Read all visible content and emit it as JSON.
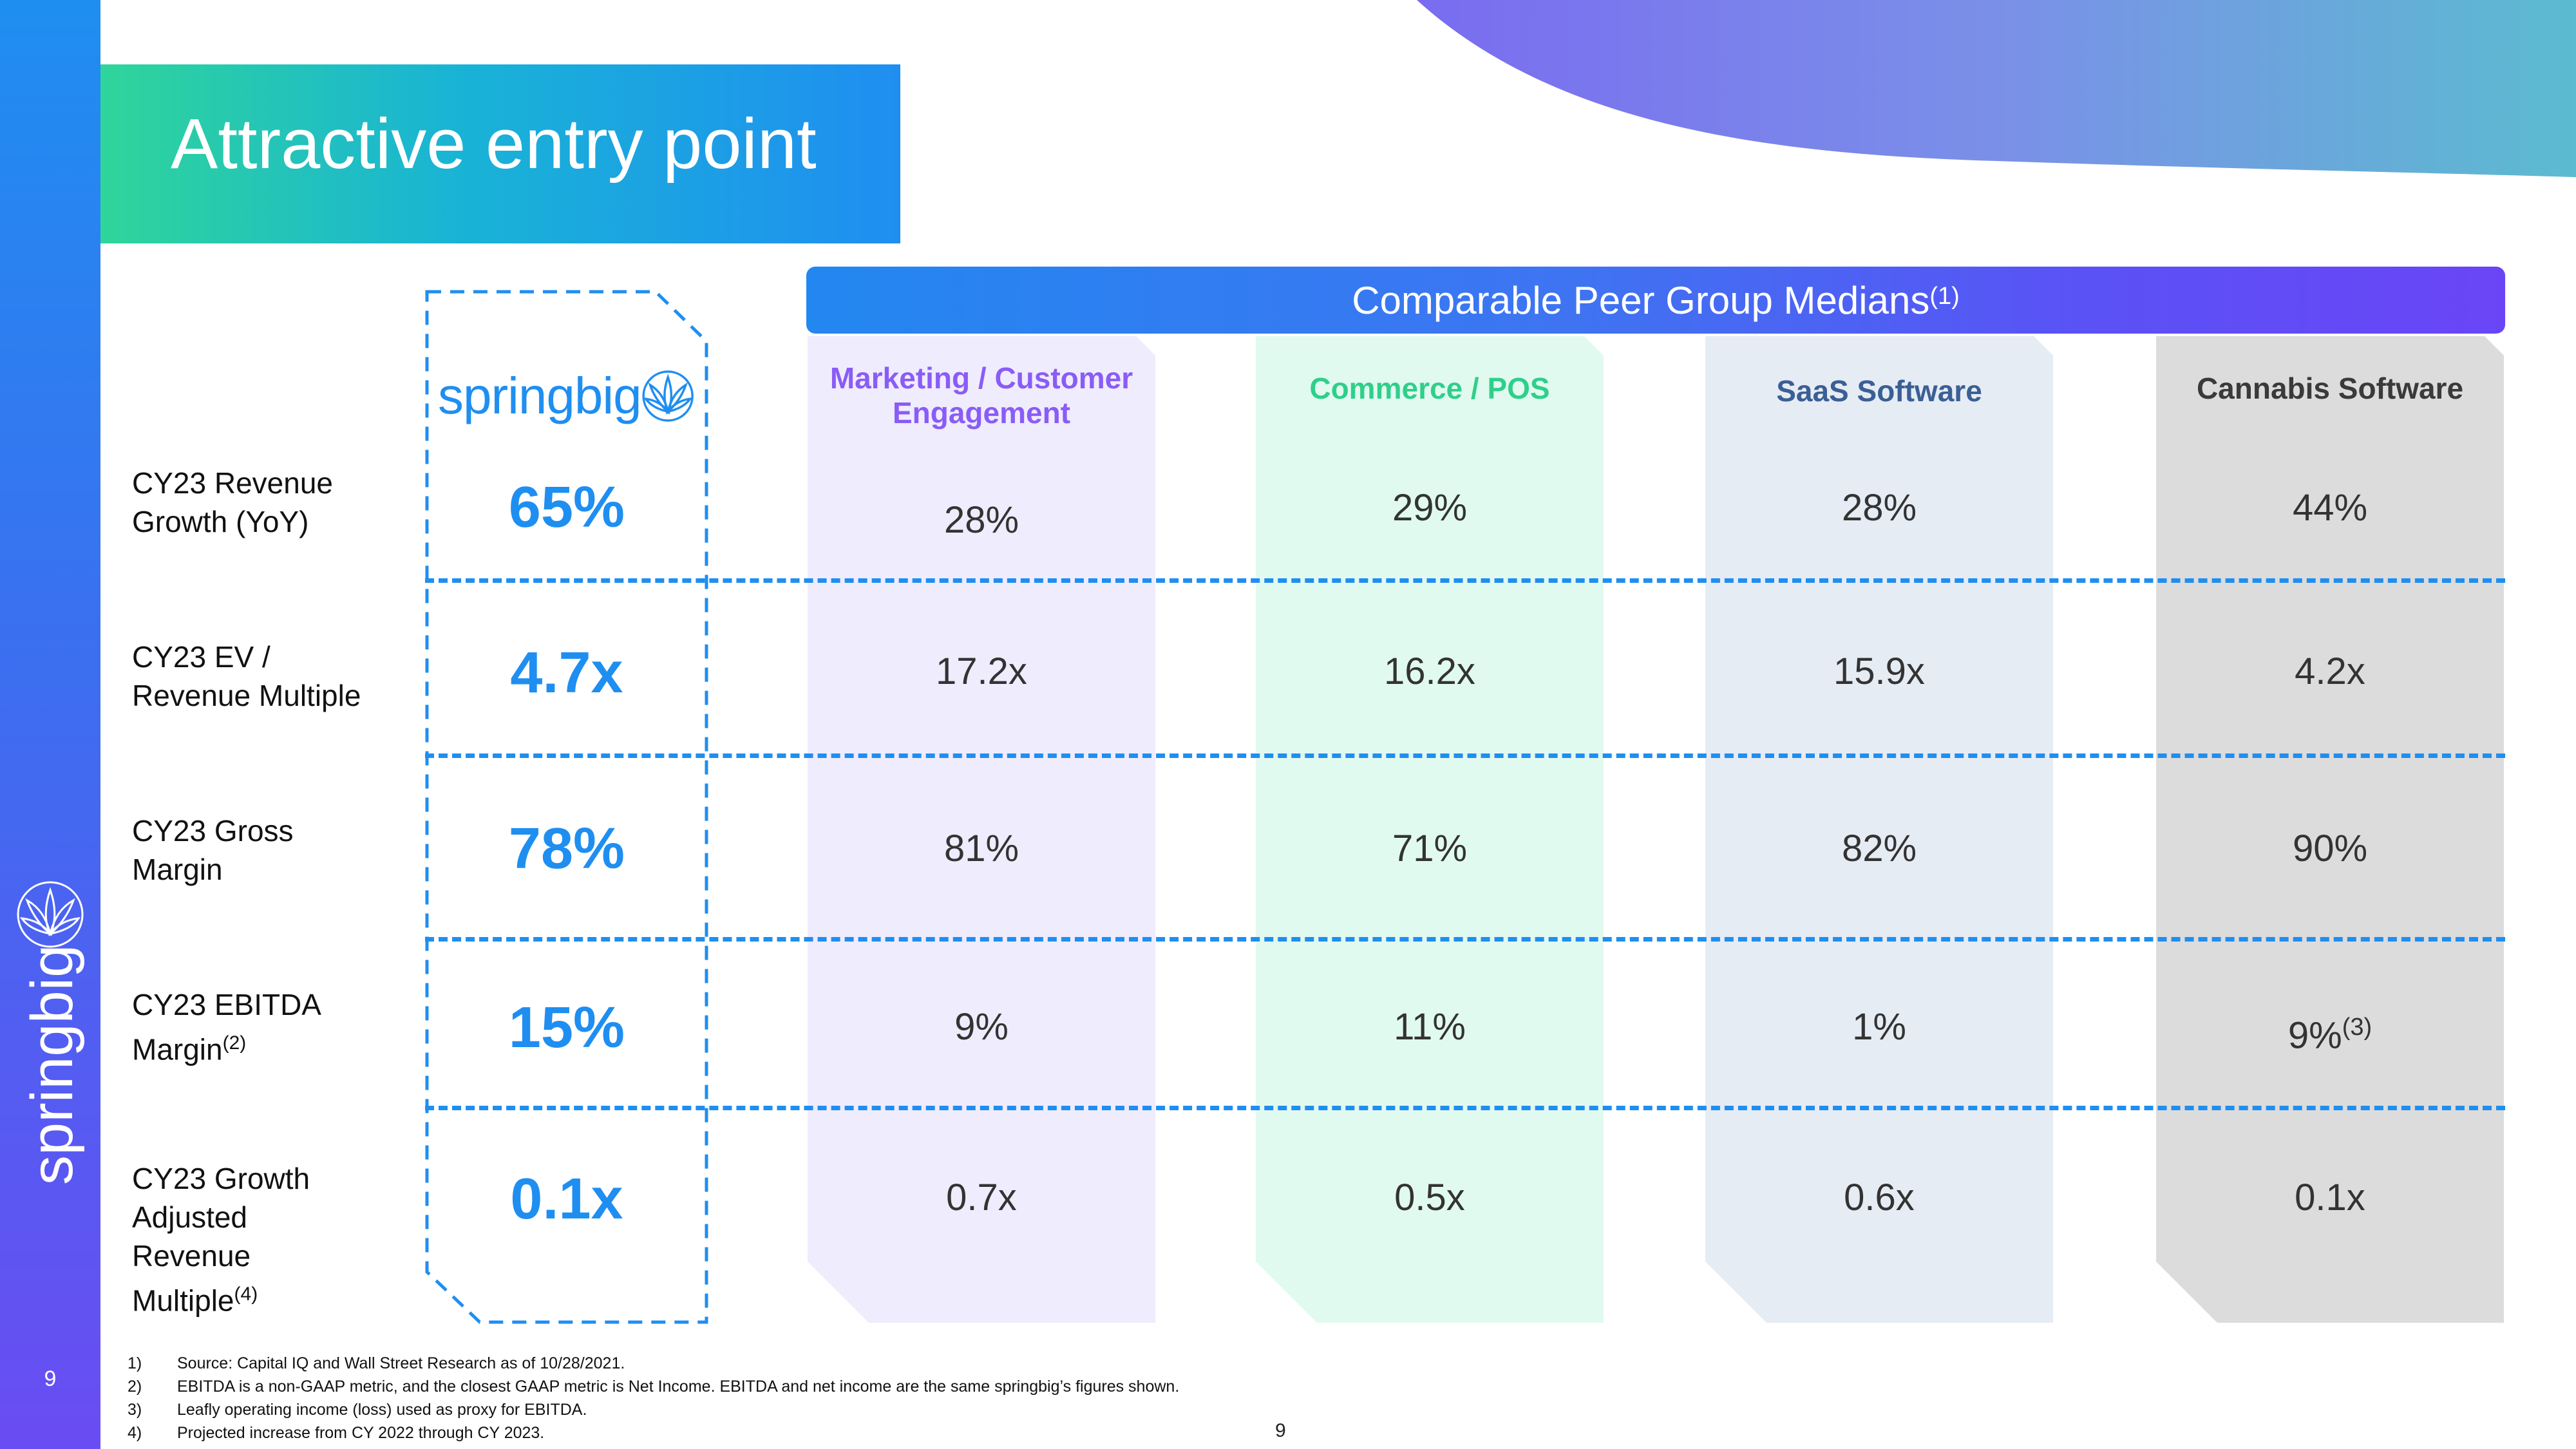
{
  "sidebar": {
    "logo_text": "springbig",
    "page_number": "9"
  },
  "title": "Attractive entry point",
  "peer_header": {
    "label": "Comparable Peer Group Medians",
    "footnote": "(1)"
  },
  "springbig_logo_text": "springbig",
  "columns": [
    {
      "name": "Marketing / Customer Engagement",
      "line1": "Marketing / Customer",
      "line2": "Engagement",
      "color": "#8a5cf6",
      "bg": "#efecfd"
    },
    {
      "name": "Commerce / POS",
      "color": "#2fcf8b",
      "bg": "#e1faf0"
    },
    {
      "name": "SaaS Software",
      "color": "#3a5f95",
      "bg": "#e6ecf4"
    },
    {
      "name": "Cannabis Software",
      "color": "#3a3a3a",
      "bg": "#dcdcdc"
    }
  ],
  "rows": [
    {
      "label_line1": "CY23 Revenue",
      "label_line2": "Growth (YoY)",
      "springbig": "65%",
      "values": [
        "28%",
        "29%",
        "28%",
        "44%"
      ]
    },
    {
      "label_line1": "CY23 EV /",
      "label_line2": "Revenue Multiple",
      "springbig": "4.7x",
      "values": [
        "17.2x",
        "16.2x",
        "15.9x",
        "4.2x"
      ]
    },
    {
      "label_line1": "CY23 Gross",
      "label_line2": "Margin",
      "springbig": "78%",
      "values": [
        "81%",
        "71%",
        "82%",
        "90%"
      ]
    },
    {
      "label_line1": "CY23 EBITDA",
      "label_line2": "Margin",
      "label_sup": "(2)",
      "springbig": "15%",
      "values": [
        "9%",
        "11%",
        "1%",
        "9%"
      ],
      "last_sup": "(3)"
    },
    {
      "label_line1": "CY23 Growth",
      "label_line2": "Adjusted",
      "label_line3": "Revenue",
      "label_line4": "Multiple",
      "label_sup": "(4)",
      "springbig": "0.1x",
      "values": [
        "0.7x",
        "0.5x",
        "0.6x",
        "0.1x"
      ]
    }
  ],
  "footnotes": [
    {
      "num": "1)",
      "text": "Source: Capital IQ and Wall Street Research as of 10/28/2021."
    },
    {
      "num": "2)",
      "text": "EBITDA is a non-GAAP metric, and the closest GAAP metric is Net Income. EBITDA and net income are the same springbig’s figures shown."
    },
    {
      "num": "3)",
      "text": "Leafly operating income (loss) used as proxy for EBITDA."
    },
    {
      "num": "4)",
      "text": "Projected increase from CY 2022 through CY 2023."
    }
  ],
  "bottom_page_number": "9",
  "colors": {
    "accent_blue": "#1f8ef1",
    "accent_purple": "#6a45f6",
    "accent_green": "#2fd59a"
  }
}
